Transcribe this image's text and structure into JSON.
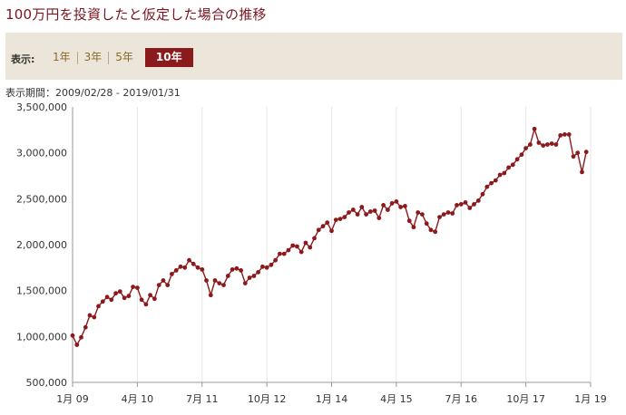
{
  "title": "100万円を投資したと仮定した場合の推移",
  "toolbar": {
    "label": "表示:",
    "ranges": [
      "1年",
      "3年",
      "5年",
      "10年"
    ],
    "active": "10年"
  },
  "period": {
    "label": "表示期間：",
    "value": "2009/02/28 - 2019/01/31"
  },
  "colors": {
    "series": "#8b1a1c",
    "grid": "#e6e6e6",
    "accent": "#7a1520"
  },
  "chart_data": {
    "type": "line",
    "title": "",
    "xlabel": "",
    "ylabel": "",
    "ylim": [
      500000,
      3500000
    ],
    "yticks": [
      500000,
      1000000,
      1500000,
      2000000,
      2500000,
      3000000,
      3500000
    ],
    "ytick_labels": [
      "500,000",
      "1,000,000",
      "1,500,000",
      "2,000,000",
      "2,500,000",
      "3,000,000",
      "3,500,000"
    ],
    "xticks": [
      {
        "label": "1月 09",
        "month": 0
      },
      {
        "label": "4月 10",
        "month": 15
      },
      {
        "label": "7月 11",
        "month": 30
      },
      {
        "label": "10月 12",
        "month": 45
      },
      {
        "label": "1月 14",
        "month": 60
      },
      {
        "label": "4月 15",
        "month": 75
      },
      {
        "label": "7月 16",
        "month": 90
      },
      {
        "label": "10月 17",
        "month": 105
      },
      {
        "label": "1月 19",
        "month": 120
      }
    ],
    "x_unit": "months since Jan 2009",
    "grid": "vertical",
    "series": [
      {
        "x_start": 1,
        "values": [
          1010000,
          910000,
          990000,
          1100000,
          1230000,
          1210000,
          1330000,
          1380000,
          1430000,
          1400000,
          1470000,
          1490000,
          1420000,
          1440000,
          1540000,
          1530000,
          1400000,
          1350000,
          1450000,
          1410000,
          1560000,
          1610000,
          1560000,
          1680000,
          1720000,
          1760000,
          1750000,
          1830000,
          1790000,
          1750000,
          1730000,
          1610000,
          1450000,
          1610000,
          1580000,
          1560000,
          1660000,
          1730000,
          1740000,
          1720000,
          1580000,
          1640000,
          1660000,
          1700000,
          1760000,
          1750000,
          1780000,
          1830000,
          1900000,
          1900000,
          1940000,
          1990000,
          1980000,
          1920000,
          2020000,
          1970000,
          2070000,
          2160000,
          2200000,
          2240000,
          2150000,
          2270000,
          2280000,
          2300000,
          2350000,
          2380000,
          2330000,
          2410000,
          2330000,
          2360000,
          2370000,
          2290000,
          2430000,
          2380000,
          2450000,
          2470000,
          2410000,
          2420000,
          2260000,
          2190000,
          2350000,
          2330000,
          2230000,
          2160000,
          2140000,
          2300000,
          2330000,
          2350000,
          2340000,
          2430000,
          2440000,
          2460000,
          2400000,
          2440000,
          2480000,
          2550000,
          2630000,
          2670000,
          2700000,
          2760000,
          2780000,
          2840000,
          2870000,
          2930000,
          2980000,
          3050000,
          3090000,
          3260000,
          3110000,
          3080000,
          3090000,
          3100000,
          3090000,
          3190000,
          3200000,
          3200000,
          2960000,
          3000000,
          2790000,
          3010000
        ]
      }
    ]
  }
}
